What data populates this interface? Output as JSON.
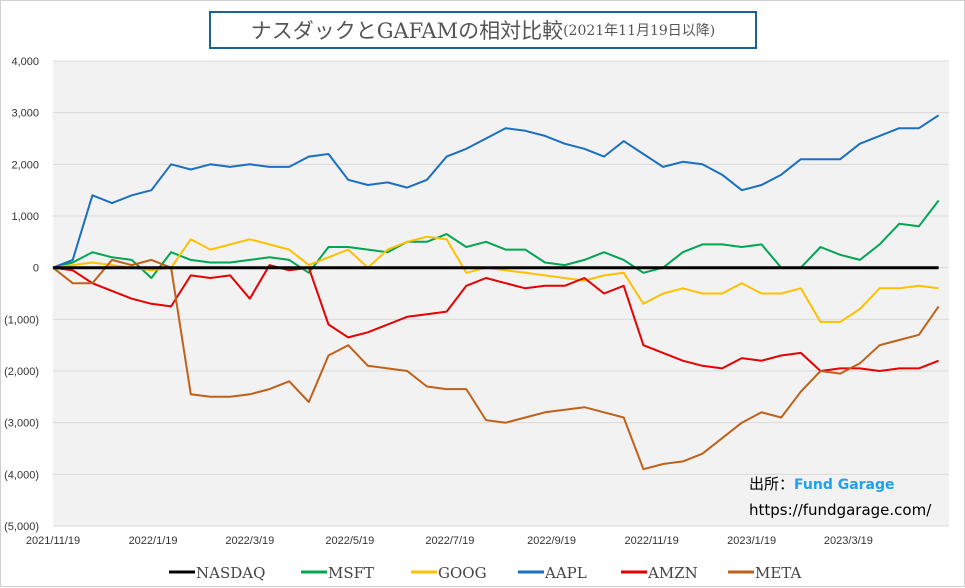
{
  "chart_data": {
    "type": "line",
    "title": "ナスダックとGAFAMの相対比較",
    "subtitle": "(2021年11月19日以降)",
    "xlabel": "",
    "ylabel": "",
    "ylim": [
      -5000,
      4000
    ],
    "yticks": [
      4000,
      3000,
      2000,
      1000,
      0,
      -1000,
      -2000,
      -3000,
      -4000,
      -5000
    ],
    "ytick_labels": [
      "4,000",
      "3,000",
      "2,000",
      "1,000",
      "0",
      "(1,000)",
      "(2,000)",
      "(3,000)",
      "(4,000)",
      "(5,000)"
    ],
    "xticks": [
      {
        "day": 0,
        "label": "2021/11/19"
      },
      {
        "day": 61,
        "label": "2022/1/19"
      },
      {
        "day": 120,
        "label": "2022/3/19"
      },
      {
        "day": 181,
        "label": "2022/5/19"
      },
      {
        "day": 242,
        "label": "2022/7/19"
      },
      {
        "day": 304,
        "label": "2022/9/19"
      },
      {
        "day": 365,
        "label": "2022/11/19"
      },
      {
        "day": 426,
        "label": "2023/1/19"
      },
      {
        "day": 485,
        "label": "2023/3/19"
      }
    ],
    "x_unit": "days since 2021/11/19",
    "x_step": 12,
    "grid": true,
    "legend_position": "bottom",
    "series": [
      {
        "name": "NASDAQ",
        "color": "#000000",
        "values": [
          0,
          0,
          0,
          0,
          0,
          0,
          0,
          0,
          0,
          0,
          0,
          0,
          0,
          0,
          0,
          0,
          0,
          0,
          0,
          0,
          0,
          0,
          0,
          0,
          0,
          0,
          0,
          0,
          0,
          0,
          0,
          0,
          0,
          0,
          0,
          0,
          0,
          0,
          0,
          0,
          0,
          0,
          0,
          0,
          0,
          0
        ]
      },
      {
        "name": "MSFT",
        "color": "#00a651",
        "values": [
          0,
          100,
          300,
          200,
          150,
          -200,
          300,
          150,
          100,
          100,
          150,
          200,
          150,
          -100,
          400,
          400,
          350,
          300,
          500,
          500,
          650,
          400,
          500,
          350,
          350,
          100,
          50,
          150,
          300,
          150,
          -100,
          0,
          300,
          450,
          450,
          400,
          450,
          0,
          0,
          400,
          250,
          150,
          450,
          850,
          800,
          1300
        ]
      },
      {
        "name": "GOOG",
        "color": "#ffc000",
        "values": [
          0,
          50,
          100,
          50,
          0,
          -50,
          0,
          550,
          350,
          450,
          550,
          450,
          350,
          50,
          200,
          350,
          0,
          350,
          500,
          600,
          550,
          -100,
          0,
          -50,
          -100,
          -150,
          -200,
          -250,
          -150,
          -100,
          -700,
          -500,
          -400,
          -500,
          -500,
          -300,
          -500,
          -500,
          -400,
          -1050,
          -1050,
          -800,
          -400,
          -400,
          -350,
          -400
        ]
      },
      {
        "name": "AAPL",
        "color": "#1a6fc0",
        "values": [
          0,
          150,
          1400,
          1250,
          1400,
          1500,
          2000,
          1900,
          2000,
          1950,
          2000,
          1950,
          1950,
          2150,
          2200,
          1700,
          1600,
          1650,
          1550,
          1700,
          2150,
          2300,
          2500,
          2700,
          2650,
          2550,
          2400,
          2300,
          2150,
          2450,
          2200,
          1950,
          2050,
          2000,
          1800,
          1500,
          1600,
          1800,
          2100,
          2100,
          2100,
          2400,
          2550,
          2700,
          2700,
          2950
        ]
      },
      {
        "name": "AMZN",
        "color": "#e60000",
        "values": [
          0,
          -50,
          -300,
          -450,
          -600,
          -700,
          -750,
          -150,
          -200,
          -150,
          -600,
          50,
          -50,
          0,
          -1100,
          -1350,
          -1250,
          -1100,
          -950,
          -900,
          -850,
          -350,
          -200,
          -300,
          -400,
          -350,
          -350,
          -200,
          -500,
          -350,
          -1500,
          -1650,
          -1800,
          -1900,
          -1950,
          -1750,
          -1800,
          -1700,
          -1650,
          -2000,
          -1950,
          -1950,
          -2000,
          -1950,
          -1950,
          -1800
        ]
      },
      {
        "name": "META",
        "color": "#c0611b",
        "values": [
          0,
          -300,
          -300,
          150,
          50,
          150,
          0,
          -2450,
          -2500,
          -2500,
          -2450,
          -2350,
          -2200,
          -2600,
          -1700,
          -1500,
          -1900,
          -1950,
          -2000,
          -2300,
          -2350,
          -2350,
          -2950,
          -3000,
          -2900,
          -2800,
          -2750,
          -2700,
          -2800,
          -2900,
          -3900,
          -3800,
          -3750,
          -3600,
          -3300,
          -3000,
          -2800,
          -2900,
          -2400,
          -2000,
          -2050,
          -1850,
          -1500,
          -1400,
          -1300,
          -750
        ]
      }
    ]
  },
  "annotations": {
    "source_label": "出所：",
    "source_brand": "Fund Garage",
    "url": "https://fundgarage.com/"
  },
  "colors": {
    "plot_bg": "#f2f2f2",
    "grid": "#d9d9d9",
    "negative_tick": "#c00000",
    "title_border": "#1f5f99"
  }
}
